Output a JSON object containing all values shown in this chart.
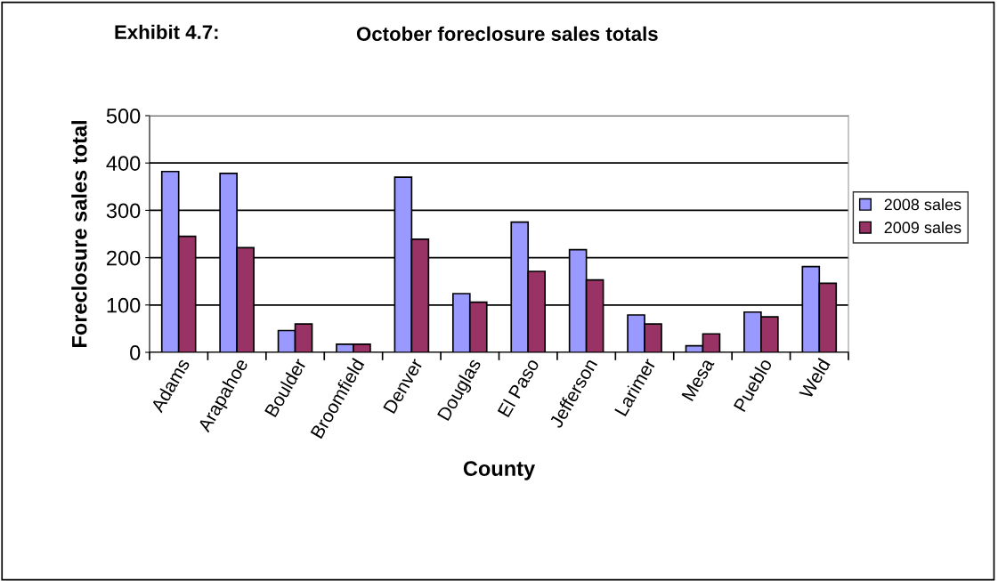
{
  "chart_data": {
    "type": "bar",
    "title": "October foreclosure sales totals",
    "annotations": [
      "Exhibit 4.7:"
    ],
    "xlabel": "County",
    "ylabel": "Foreclosure sales total",
    "categories": [
      "Adams",
      "Arapahoe",
      "Boulder",
      "Broomfield",
      "Denver",
      "Douglas",
      "El Paso",
      "Jefferson",
      "Larimer",
      "Mesa",
      "Pueblo",
      "Weld"
    ],
    "series": [
      {
        "name": "2008 sales",
        "color": "#9999ff",
        "values": [
          382,
          378,
          46,
          17,
          370,
          124,
          275,
          217,
          79,
          14,
          85,
          181
        ]
      },
      {
        "name": "2009 sales",
        "color": "#993366",
        "values": [
          245,
          221,
          60,
          17,
          239,
          106,
          171,
          153,
          60,
          39,
          75,
          146
        ]
      }
    ],
    "ylim": [
      0,
      500
    ],
    "yticks": [
      0,
      100,
      200,
      300,
      400,
      500
    ],
    "grid": "y",
    "legend": "right"
  }
}
